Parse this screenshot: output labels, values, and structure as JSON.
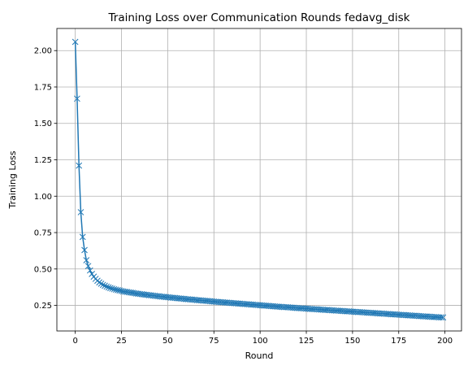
{
  "chart_data": {
    "type": "line",
    "title": "Training Loss over Communication Rounds fedavg_disk",
    "xlabel": "Round",
    "ylabel": "Training Loss",
    "xlim": [
      -9.95,
      208.95
    ],
    "ylim": [
      0.0743,
      2.152
    ],
    "xticks": [
      0,
      25,
      50,
      75,
      100,
      125,
      150,
      175,
      200
    ],
    "yticks": [
      0.25,
      0.5,
      0.75,
      1.0,
      1.25,
      1.5,
      1.75,
      2.0
    ],
    "ytick_labels": [
      "0.25",
      "0.50",
      "0.75",
      "1.00",
      "1.25",
      "1.50",
      "1.75",
      "2.00"
    ],
    "xtick_labels": [
      "0",
      "25",
      "50",
      "75",
      "100",
      "125",
      "150",
      "175",
      "200"
    ],
    "grid": true,
    "marker": "x",
    "color": "#1f77b4",
    "series": [
      {
        "x": [
          0,
          1,
          2,
          3,
          4,
          5,
          6,
          7,
          8,
          9,
          10,
          11,
          12,
          13,
          14,
          15,
          16,
          17,
          18,
          19,
          20,
          21,
          22,
          23,
          24,
          25,
          26,
          27,
          28,
          29,
          30,
          31,
          32,
          33,
          34,
          35,
          36,
          37,
          38,
          39,
          40,
          41,
          42,
          43,
          44,
          45,
          46,
          47,
          48,
          49,
          50,
          51,
          52,
          53,
          54,
          55,
          56,
          57,
          58,
          59,
          60,
          61,
          62,
          63,
          64,
          65,
          66,
          67,
          68,
          69,
          70,
          71,
          72,
          73,
          74,
          75,
          76,
          77,
          78,
          79,
          80,
          81,
          82,
          83,
          84,
          85,
          86,
          87,
          88,
          89,
          90,
          91,
          92,
          93,
          94,
          95,
          96,
          97,
          98,
          99,
          100,
          101,
          102,
          103,
          104,
          105,
          106,
          107,
          108,
          109,
          110,
          111,
          112,
          113,
          114,
          115,
          116,
          117,
          118,
          119,
          120,
          121,
          122,
          123,
          124,
          125,
          126,
          127,
          128,
          129,
          130,
          131,
          132,
          133,
          134,
          135,
          136,
          137,
          138,
          139,
          140,
          141,
          142,
          143,
          144,
          145,
          146,
          147,
          148,
          149,
          150,
          151,
          152,
          153,
          154,
          155,
          156,
          157,
          158,
          159,
          160,
          161,
          162,
          163,
          164,
          165,
          166,
          167,
          168,
          169,
          170,
          171,
          172,
          173,
          174,
          175,
          176,
          177,
          178,
          179,
          180,
          181,
          182,
          183,
          184,
          185,
          186,
          187,
          188,
          189,
          190,
          191,
          192,
          193,
          194,
          195,
          196,
          197,
          198,
          199
        ],
        "values": [
          2.06,
          1.67,
          1.21,
          0.89,
          0.72,
          0.63,
          0.56,
          0.52,
          0.49,
          0.466,
          0.447,
          0.432,
          0.419,
          0.408,
          0.399,
          0.391,
          0.385,
          0.379,
          0.374,
          0.369,
          0.365,
          0.361,
          0.358,
          0.355,
          0.352,
          0.349,
          0.346,
          0.344,
          0.342,
          0.34,
          0.338,
          0.336,
          0.334,
          0.332,
          0.33,
          0.328,
          0.327,
          0.325,
          0.323,
          0.322,
          0.32,
          0.319,
          0.317,
          0.316,
          0.314,
          0.313,
          0.311,
          0.31,
          0.309,
          0.307,
          0.306,
          0.305,
          0.303,
          0.302,
          0.301,
          0.3,
          0.298,
          0.297,
          0.296,
          0.295,
          0.293,
          0.292,
          0.291,
          0.29,
          0.289,
          0.288,
          0.286,
          0.285,
          0.284,
          0.283,
          0.282,
          0.281,
          0.28,
          0.279,
          0.277,
          0.276,
          0.275,
          0.274,
          0.273,
          0.272,
          0.271,
          0.27,
          0.269,
          0.268,
          0.267,
          0.266,
          0.265,
          0.264,
          0.263,
          0.262,
          0.261,
          0.26,
          0.259,
          0.258,
          0.257,
          0.256,
          0.255,
          0.254,
          0.253,
          0.252,
          0.251,
          0.25,
          0.249,
          0.248,
          0.247,
          0.246,
          0.245,
          0.244,
          0.243,
          0.242,
          0.241,
          0.24,
          0.239,
          0.238,
          0.238,
          0.237,
          0.236,
          0.235,
          0.234,
          0.233,
          0.232,
          0.231,
          0.23,
          0.23,
          0.229,
          0.228,
          0.227,
          0.226,
          0.225,
          0.224,
          0.224,
          0.223,
          0.222,
          0.221,
          0.22,
          0.219,
          0.219,
          0.218,
          0.217,
          0.216,
          0.215,
          0.214,
          0.214,
          0.213,
          0.212,
          0.211,
          0.21,
          0.209,
          0.209,
          0.208,
          0.207,
          0.206,
          0.205,
          0.204,
          0.204,
          0.203,
          0.202,
          0.201,
          0.2,
          0.199,
          0.199,
          0.198,
          0.197,
          0.196,
          0.195,
          0.194,
          0.194,
          0.193,
          0.192,
          0.191,
          0.19,
          0.189,
          0.189,
          0.188,
          0.187,
          0.186,
          0.185,
          0.184,
          0.184,
          0.183,
          0.182,
          0.181,
          0.18,
          0.179,
          0.179,
          0.178,
          0.177,
          0.176,
          0.175,
          0.174,
          0.174,
          0.173,
          0.172,
          0.171,
          0.17,
          0.17,
          0.169,
          0.168,
          0.168,
          0.167
        ]
      }
    ]
  }
}
